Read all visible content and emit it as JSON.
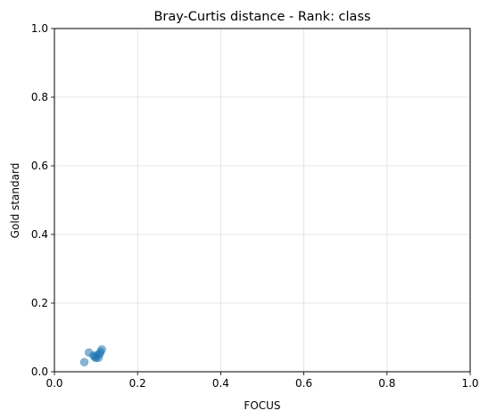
{
  "chart_data": {
    "type": "scatter",
    "title": "Bray-Curtis distance - Rank: class",
    "xlabel": "FOCUS",
    "ylabel": "Gold standard",
    "xlim": [
      0,
      1
    ],
    "ylim": [
      0,
      1
    ],
    "xticks": [
      "0.0",
      "0.2",
      "0.4",
      "0.6",
      "0.8",
      "1.0"
    ],
    "yticks": [
      "0.0",
      "0.2",
      "0.4",
      "0.6",
      "0.8",
      "1.0"
    ],
    "grid": true,
    "point_color": "#1f77b4",
    "point_alpha": 0.55,
    "points": [
      {
        "x": 0.072,
        "y": 0.028
      },
      {
        "x": 0.083,
        "y": 0.056
      },
      {
        "x": 0.094,
        "y": 0.047
      },
      {
        "x": 0.097,
        "y": 0.043
      },
      {
        "x": 0.1,
        "y": 0.04
      },
      {
        "x": 0.102,
        "y": 0.048
      },
      {
        "x": 0.106,
        "y": 0.041
      },
      {
        "x": 0.109,
        "y": 0.052
      },
      {
        "x": 0.111,
        "y": 0.058
      },
      {
        "x": 0.114,
        "y": 0.065
      }
    ]
  }
}
